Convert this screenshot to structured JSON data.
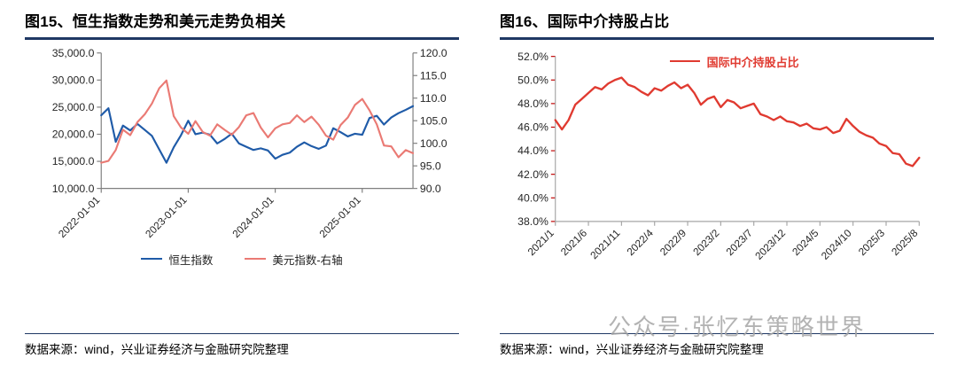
{
  "watermark": "公众号·张忆东策略世界",
  "colors": {
    "title_rule": "#1f3864",
    "source_rule": "#1f3864",
    "hsi_blue": "#1f5ba8",
    "dxy_red": "#ea7a74",
    "intermediary_red": "#e03a30",
    "axis_gray": "#7f7f7f",
    "red_tick": "#c00000"
  },
  "figures": [
    {
      "title": "图15、恒生指数走势和美元走势负相关",
      "source": "数据来源：wind，兴业证券经济与金融研究院整理"
    },
    {
      "title": "图16、国际中介持股占比",
      "source": "数据来源：wind，兴业证券经济与金融研究院整理"
    }
  ],
  "chart_data": [
    {
      "type": "line",
      "title": "恒生指数走势和美元走势负相关",
      "grid": false,
      "legend_position": "bottom",
      "x_count": 44,
      "x_tick_indices": [
        0,
        12,
        24,
        36
      ],
      "x_tick_labels": [
        "2022-01-01",
        "2023-01-01",
        "2024-01-01",
        "2025-01-01"
      ],
      "y_left": {
        "lim": [
          10000,
          35000
        ],
        "tick_values": [
          10000,
          15000,
          20000,
          25000,
          30000,
          35000
        ],
        "tick_labels": [
          "10,000.0",
          "15,000.0",
          "20,000.0",
          "25,000.0",
          "30,000.0",
          "35,000.0"
        ]
      },
      "y_right": {
        "lim": [
          90,
          120
        ],
        "tick_values": [
          90,
          95,
          100,
          105,
          110,
          115,
          120
        ],
        "tick_labels": [
          "90.0",
          "95.0",
          "100.0",
          "105.0",
          "110.0",
          "115.0",
          "120.0"
        ]
      },
      "series": [
        {
          "name": "恒生指数",
          "axis": "left",
          "color": "#1f5ba8",
          "values": [
            23500,
            24800,
            18600,
            21600,
            20700,
            21900,
            20800,
            19700,
            17200,
            14750,
            17600,
            19800,
            22500,
            20000,
            20300,
            19900,
            18300,
            19100,
            20100,
            18300,
            17700,
            17100,
            17400,
            17000,
            15500,
            16200,
            16600,
            17700,
            18500,
            17800,
            17300,
            17900,
            21100,
            20400,
            19600,
            20100,
            19900,
            23000,
            23400,
            21800,
            23100,
            23900,
            24500,
            25200
          ]
        },
        {
          "name": "美元指数-右轴",
          "axis": "right",
          "color": "#ea7a74",
          "values": [
            95.7,
            96.1,
            98.5,
            103.0,
            101.8,
            104.7,
            106.4,
            108.8,
            112.2,
            113.9,
            106.0,
            103.5,
            102.1,
            104.9,
            102.5,
            101.7,
            104.2,
            103.0,
            101.9,
            103.6,
            106.2,
            106.7,
            103.5,
            101.3,
            103.3,
            104.2,
            104.5,
            106.2,
            104.7,
            105.9,
            104.1,
            101.7,
            100.8,
            104.0,
            105.7,
            108.5,
            109.8,
            107.3,
            104.2,
            99.5,
            99.3,
            96.9,
            98.5,
            97.8
          ]
        }
      ]
    },
    {
      "type": "line",
      "title": "国际中介持股占比",
      "grid": false,
      "legend_position": "top-inside",
      "x_count": 56,
      "x_tick_indices": [
        0,
        5,
        10,
        15,
        20,
        25,
        30,
        35,
        40,
        45,
        50,
        55
      ],
      "x_tick_labels": [
        "2021/1",
        "2021/6",
        "2021/11",
        "2022/4",
        "2022/9",
        "2023/2",
        "2023/7",
        "2023/12",
        "2024/5",
        "2024/10",
        "2025/3",
        "2025/8"
      ],
      "y_left": {
        "lim": [
          38,
          52
        ],
        "tick_values": [
          38,
          40,
          42,
          44,
          46,
          48,
          50,
          52
        ],
        "tick_labels": [
          "38.0%",
          "40.0%",
          "42.0%",
          "44.0%",
          "46.0%",
          "48.0%",
          "50.0%",
          "52.0%"
        ]
      },
      "series": [
        {
          "name": "国际中介持股占比",
          "axis": "left",
          "color": "#e03a30",
          "values": [
            46.6,
            45.8,
            46.6,
            47.9,
            48.4,
            48.9,
            49.4,
            49.2,
            49.7,
            50.0,
            50.2,
            49.6,
            49.4,
            49.0,
            48.7,
            49.3,
            49.1,
            49.5,
            49.8,
            49.3,
            49.6,
            48.9,
            47.9,
            48.4,
            48.6,
            47.7,
            48.3,
            48.1,
            47.6,
            47.8,
            48.0,
            47.1,
            46.9,
            46.6,
            46.9,
            46.5,
            46.4,
            46.1,
            46.3,
            45.9,
            45.8,
            46.0,
            45.5,
            45.7,
            46.7,
            46.1,
            45.6,
            45.3,
            45.1,
            44.6,
            44.4,
            43.8,
            43.7,
            42.9,
            42.7,
            43.4
          ]
        }
      ]
    }
  ]
}
